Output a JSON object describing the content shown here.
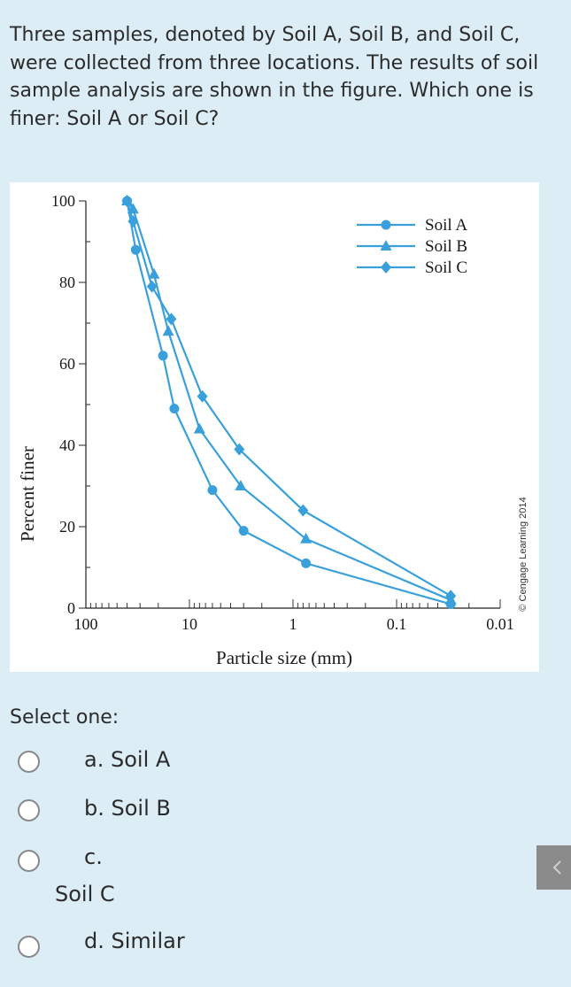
{
  "question": {
    "text": "Three samples, denoted by Soil A, Soil B, and Soil C, were collected from three locations. The results of soil sample analysis are shown in the figure. Which one is finer: Soil A or Soil C?"
  },
  "chart_data": {
    "type": "line",
    "xlabel": "Particle size (mm)",
    "ylabel": "Percent finer",
    "x_scale": "log",
    "x_reversed": true,
    "xlim": [
      100,
      0.01
    ],
    "ylim": [
      0,
      100
    ],
    "x_ticks": [
      "100",
      "10",
      "1",
      "0.1",
      "0.01"
    ],
    "y_ticks": [
      "0",
      "20",
      "40",
      "60",
      "80",
      "100"
    ],
    "legend_position": "top-right",
    "legend": [
      "Soil A",
      "Soil B",
      "Soil C"
    ],
    "credit": "© Cengage Learning 2014",
    "color": "#3aa0dc",
    "series": [
      {
        "name": "Soil A",
        "marker": "circle",
        "x": [
          40,
          33,
          18,
          14,
          6,
          3,
          0.75,
          0.03
        ],
        "y": [
          100,
          88,
          62,
          49,
          29,
          19,
          11,
          1
        ]
      },
      {
        "name": "Soil B",
        "marker": "triangle",
        "x": [
          40,
          35,
          22,
          16,
          8,
          3.2,
          0.75,
          0.03
        ],
        "y": [
          100,
          98,
          82,
          68,
          44,
          30,
          17,
          2
        ]
      },
      {
        "name": "Soil C",
        "marker": "diamond",
        "x": [
          40,
          35,
          23,
          15,
          7.5,
          3.3,
          0.8,
          0.03
        ],
        "y": [
          100,
          95,
          79,
          71,
          52,
          39,
          24,
          3
        ]
      }
    ]
  },
  "select_label": "Select one:",
  "options": [
    {
      "letter": "a.",
      "label": "Soil A"
    },
    {
      "letter": "b.",
      "label": "Soil B"
    },
    {
      "letter": "c.",
      "label": "Soil C"
    },
    {
      "letter": "d.",
      "label": "Similar"
    }
  ]
}
